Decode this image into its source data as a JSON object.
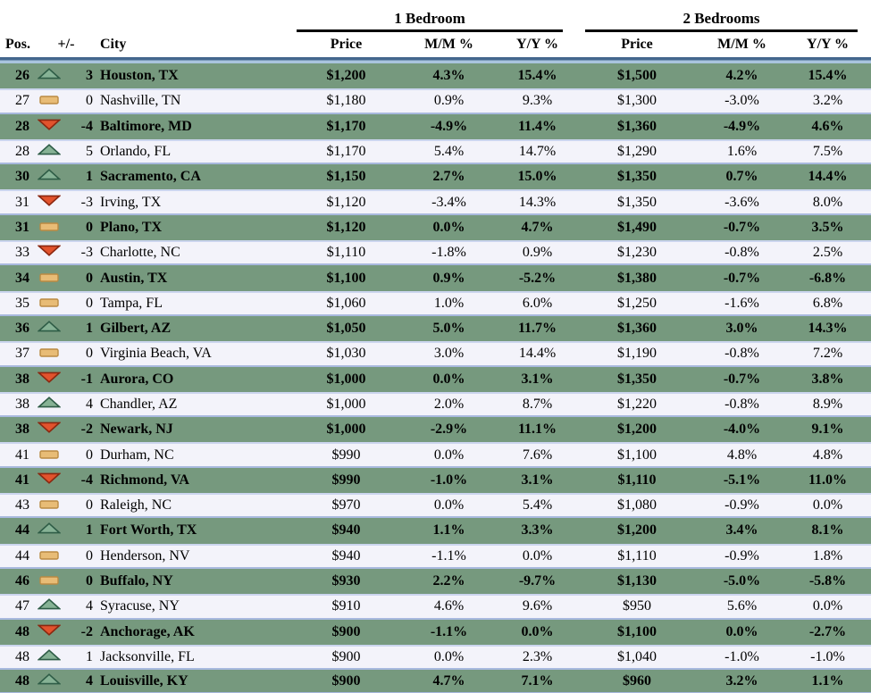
{
  "table": {
    "group_headers": {
      "one_bedroom": "1 Bedroom",
      "two_bedrooms": "2 Bedrooms"
    },
    "columns": {
      "pos": "Pos.",
      "delta": "+/-",
      "city": "City",
      "price": "Price",
      "mm": "M/M %",
      "yy": "Y/Y %"
    },
    "rows": [
      {
        "pos": "26",
        "trend": "up",
        "delta": "3",
        "city": "Houston, TX",
        "price1": "$1,200",
        "mm1": "4.3%",
        "yy1": "15.4%",
        "price2": "$1,500",
        "mm2": "4.2%",
        "yy2": "15.4%"
      },
      {
        "pos": "27",
        "trend": "flat",
        "delta": "0",
        "city": "Nashville, TN",
        "price1": "$1,180",
        "mm1": "0.9%",
        "yy1": "9.3%",
        "price2": "$1,300",
        "mm2": "-3.0%",
        "yy2": "3.2%"
      },
      {
        "pos": "28",
        "trend": "down",
        "delta": "-4",
        "city": "Baltimore, MD",
        "price1": "$1,170",
        "mm1": "-4.9%",
        "yy1": "11.4%",
        "price2": "$1,360",
        "mm2": "-4.9%",
        "yy2": "4.6%"
      },
      {
        "pos": "28",
        "trend": "up",
        "delta": "5",
        "city": "Orlando, FL",
        "price1": "$1,170",
        "mm1": "5.4%",
        "yy1": "14.7%",
        "price2": "$1,290",
        "mm2": "1.6%",
        "yy2": "7.5%"
      },
      {
        "pos": "30",
        "trend": "up",
        "delta": "1",
        "city": "Sacramento, CA",
        "price1": "$1,150",
        "mm1": "2.7%",
        "yy1": "15.0%",
        "price2": "$1,350",
        "mm2": "0.7%",
        "yy2": "14.4%"
      },
      {
        "pos": "31",
        "trend": "down",
        "delta": "-3",
        "city": "Irving, TX",
        "price1": "$1,120",
        "mm1": "-3.4%",
        "yy1": "14.3%",
        "price2": "$1,350",
        "mm2": "-3.6%",
        "yy2": "8.0%"
      },
      {
        "pos": "31",
        "trend": "flat",
        "delta": "0",
        "city": "Plano, TX",
        "price1": "$1,120",
        "mm1": "0.0%",
        "yy1": "4.7%",
        "price2": "$1,490",
        "mm2": "-0.7%",
        "yy2": "3.5%"
      },
      {
        "pos": "33",
        "trend": "down",
        "delta": "-3",
        "city": "Charlotte, NC",
        "price1": "$1,110",
        "mm1": "-1.8%",
        "yy1": "0.9%",
        "price2": "$1,230",
        "mm2": "-0.8%",
        "yy2": "2.5%"
      },
      {
        "pos": "34",
        "trend": "flat",
        "delta": "0",
        "city": "Austin, TX",
        "price1": "$1,100",
        "mm1": "0.9%",
        "yy1": "-5.2%",
        "price2": "$1,380",
        "mm2": "-0.7%",
        "yy2": "-6.8%"
      },
      {
        "pos": "35",
        "trend": "flat",
        "delta": "0",
        "city": "Tampa, FL",
        "price1": "$1,060",
        "mm1": "1.0%",
        "yy1": "6.0%",
        "price2": "$1,250",
        "mm2": "-1.6%",
        "yy2": "6.8%"
      },
      {
        "pos": "36",
        "trend": "up",
        "delta": "1",
        "city": "Gilbert, AZ",
        "price1": "$1,050",
        "mm1": "5.0%",
        "yy1": "11.7%",
        "price2": "$1,360",
        "mm2": "3.0%",
        "yy2": "14.3%"
      },
      {
        "pos": "37",
        "trend": "flat",
        "delta": "0",
        "city": "Virginia Beach, VA",
        "price1": "$1,030",
        "mm1": "3.0%",
        "yy1": "14.4%",
        "price2": "$1,190",
        "mm2": "-0.8%",
        "yy2": "7.2%"
      },
      {
        "pos": "38",
        "trend": "down",
        "delta": "-1",
        "city": "Aurora, CO",
        "price1": "$1,000",
        "mm1": "0.0%",
        "yy1": "3.1%",
        "price2": "$1,350",
        "mm2": "-0.7%",
        "yy2": "3.8%"
      },
      {
        "pos": "38",
        "trend": "up",
        "delta": "4",
        "city": "Chandler, AZ",
        "price1": "$1,000",
        "mm1": "2.0%",
        "yy1": "8.7%",
        "price2": "$1,220",
        "mm2": "-0.8%",
        "yy2": "8.9%"
      },
      {
        "pos": "38",
        "trend": "down",
        "delta": "-2",
        "city": "Newark, NJ",
        "price1": "$1,000",
        "mm1": "-2.9%",
        "yy1": "11.1%",
        "price2": "$1,200",
        "mm2": "-4.0%",
        "yy2": "9.1%"
      },
      {
        "pos": "41",
        "trend": "flat",
        "delta": "0",
        "city": "Durham, NC",
        "price1": "$990",
        "mm1": "0.0%",
        "yy1": "7.6%",
        "price2": "$1,100",
        "mm2": "4.8%",
        "yy2": "4.8%"
      },
      {
        "pos": "41",
        "trend": "down",
        "delta": "-4",
        "city": "Richmond, VA",
        "price1": "$990",
        "mm1": "-1.0%",
        "yy1": "3.1%",
        "price2": "$1,110",
        "mm2": "-5.1%",
        "yy2": "11.0%"
      },
      {
        "pos": "43",
        "trend": "flat",
        "delta": "0",
        "city": "Raleigh, NC",
        "price1": "$970",
        "mm1": "0.0%",
        "yy1": "5.4%",
        "price2": "$1,080",
        "mm2": "-0.9%",
        "yy2": "0.0%"
      },
      {
        "pos": "44",
        "trend": "up",
        "delta": "1",
        "city": "Fort Worth, TX",
        "price1": "$940",
        "mm1": "1.1%",
        "yy1": "3.3%",
        "price2": "$1,200",
        "mm2": "3.4%",
        "yy2": "8.1%"
      },
      {
        "pos": "44",
        "trend": "flat",
        "delta": "0",
        "city": "Henderson, NV",
        "price1": "$940",
        "mm1": "-1.1%",
        "yy1": "0.0%",
        "price2": "$1,110",
        "mm2": "-0.9%",
        "yy2": "1.8%"
      },
      {
        "pos": "46",
        "trend": "flat",
        "delta": "0",
        "city": "Buffalo, NY",
        "price1": "$930",
        "mm1": "2.2%",
        "yy1": "-9.7%",
        "price2": "$1,130",
        "mm2": "-5.0%",
        "yy2": "-5.8%"
      },
      {
        "pos": "47",
        "trend": "up",
        "delta": "4",
        "city": "Syracuse, NY",
        "price1": "$910",
        "mm1": "4.6%",
        "yy1": "9.6%",
        "price2": "$950",
        "mm2": "5.6%",
        "yy2": "0.0%"
      },
      {
        "pos": "48",
        "trend": "down",
        "delta": "-2",
        "city": "Anchorage, AK",
        "price1": "$900",
        "mm1": "-1.1%",
        "yy1": "0.0%",
        "price2": "$1,100",
        "mm2": "0.0%",
        "yy2": "-2.7%"
      },
      {
        "pos": "48",
        "trend": "up",
        "delta": "1",
        "city": "Jacksonville, FL",
        "price1": "$900",
        "mm1": "0.0%",
        "yy1": "2.3%",
        "price2": "$1,040",
        "mm2": "-1.0%",
        "yy2": "-1.0%"
      },
      {
        "pos": "48",
        "trend": "up",
        "delta": "4",
        "city": "Louisville, KY",
        "price1": "$900",
        "mm1": "4.7%",
        "yy1": "7.1%",
        "price2": "$960",
        "mm2": "3.2%",
        "yy2": "1.1%"
      }
    ]
  },
  "icons": {
    "up": "up-triangle-icon",
    "down": "down-triangle-icon",
    "flat": "dash-icon"
  },
  "colors": {
    "green_row_bg": "#76997e",
    "light_row_bg": "#f3f3fa",
    "light_row_border_top": "#cbd5ee",
    "light_row_border_bottom": "#a8b9de",
    "header_divider_dark": "#44678d",
    "header_divider_light": "#a9c4de",
    "group_underline": "#000000",
    "up_icon_fill": "#86b295",
    "up_icon_stroke": "#2e5c46",
    "down_icon_fill": "#e2532d",
    "down_icon_stroke": "#8a2710",
    "flat_icon_fill": "#e8bc76",
    "flat_icon_stroke": "#ba8a42"
  }
}
